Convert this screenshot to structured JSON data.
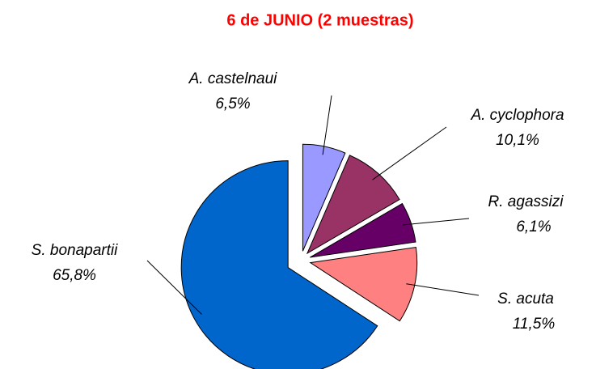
{
  "chart_data": {
    "type": "pie",
    "title": "6 de JUNIO (2 muestras)",
    "categories": [
      "A. castelnaui",
      "A. cyclophora",
      "R. agassizi",
      "S. acuta",
      "S. bonapartii"
    ],
    "values": [
      6.5,
      10.1,
      6.1,
      11.5,
      65.8
    ],
    "value_labels": [
      "6,5%",
      "10,1%",
      "6,1%",
      "11,5%",
      "65,8%"
    ],
    "colors": [
      "#9999ff",
      "#993366",
      "#660066",
      "#ff8080",
      "#0066cc"
    ]
  }
}
